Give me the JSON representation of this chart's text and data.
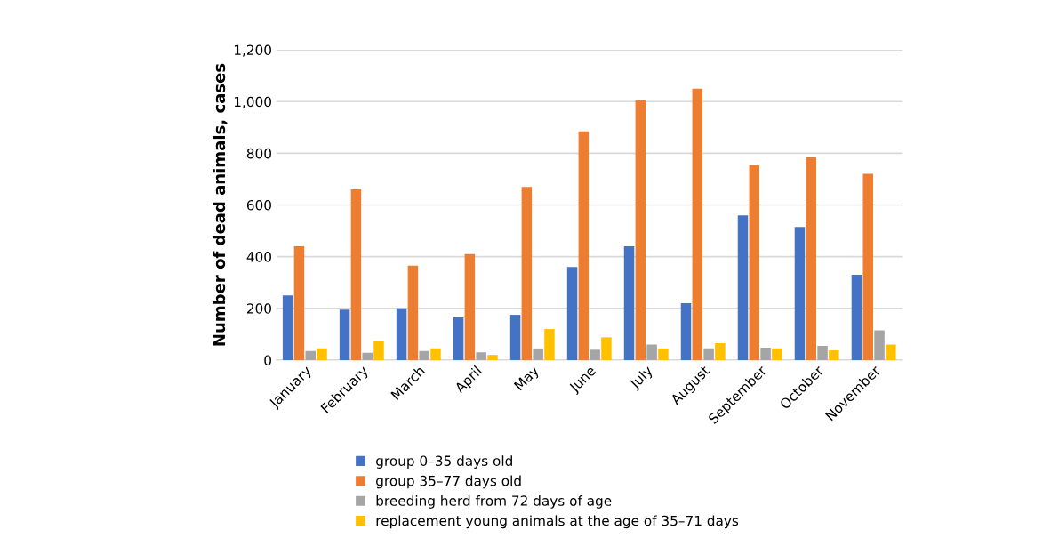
{
  "chart_data": {
    "type": "bar",
    "ylabel": "Number of dead animals, cases",
    "categories": [
      "January",
      "February",
      "March",
      "April",
      "May",
      "June",
      "July",
      "August",
      "September",
      "October",
      "November"
    ],
    "series": [
      {
        "name": "group 0–35 days old",
        "color": "#4472c4",
        "values": [
          250,
          195,
          200,
          165,
          175,
          360,
          440,
          220,
          560,
          515,
          330
        ]
      },
      {
        "name": "group 35–77 days old",
        "color": "#ed7d31",
        "values": [
          440,
          660,
          365,
          410,
          670,
          885,
          1005,
          1050,
          755,
          785,
          720
        ]
      },
      {
        "name": "breeding herd from 72 days of age",
        "color": "#a5a5a5",
        "values": [
          35,
          28,
          35,
          30,
          45,
          40,
          60,
          45,
          48,
          55,
          115
        ]
      },
      {
        "name": "replacement young animals at the age of 35–71 days",
        "color": "#ffc000",
        "values": [
          45,
          73,
          45,
          20,
          120,
          88,
          45,
          65,
          45,
          38,
          60
        ]
      }
    ],
    "ylim": [
      0,
      1200
    ],
    "yticks": [
      {
        "value": 0,
        "label": "0"
      },
      {
        "value": 200,
        "label": "200"
      },
      {
        "value": 400,
        "label": "400"
      },
      {
        "value": 600,
        "label": "600"
      },
      {
        "value": 800,
        "label": "800"
      },
      {
        "value": 1000,
        "label": "1,000"
      },
      {
        "value": 1200,
        "label": "1,200"
      }
    ],
    "grid": "y",
    "legend": "bottom"
  }
}
